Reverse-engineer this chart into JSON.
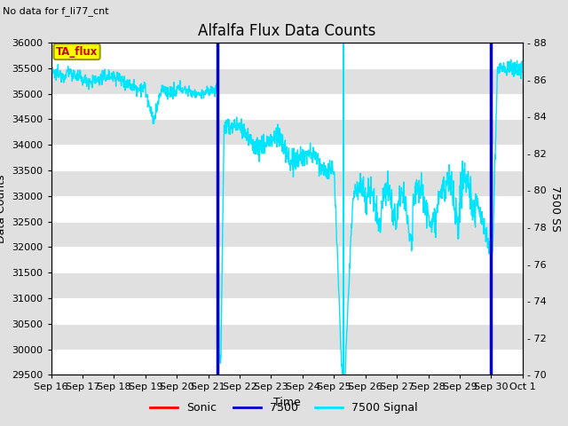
{
  "title": "Alfalfa Flux Data Counts",
  "top_left_note": "No data for f_li77_cnt",
  "ylabel_left": "Data Counts",
  "ylabel_right": "7500 SS",
  "xlabel": "Time",
  "ylim_left": [
    29500,
    36000
  ],
  "ylim_right": [
    70,
    88
  ],
  "bg_color": "#e0e0e0",
  "grid_color": "#ffffff",
  "cyan_line_color": "#00e5ff",
  "blue_vline_color": "#0000cd",
  "cyan_vline_color": "#00e5ff",
  "red_line_color": "#ff0000",
  "tag_label": "TA_flux",
  "tag_bg": "#ffff00",
  "tag_border": "#999900",
  "tag_text_color": "#cc0000",
  "xtick_labels": [
    "Sep 16",
    "Sep 17",
    "Sep 18",
    "Sep 19",
    "Sep 20",
    "Sep 21",
    "Sep 22",
    "Sep 23",
    "Sep 24",
    "Sep 25",
    "Sep 26",
    "Sep 27",
    "Sep 28",
    "Sep 29",
    "Sep 30",
    "Oct 1"
  ],
  "yticks_left": [
    29500,
    30000,
    30500,
    31000,
    31500,
    32000,
    32500,
    33000,
    33500,
    34000,
    34500,
    35000,
    35500,
    36000
  ],
  "yticks_right": [
    70,
    72,
    74,
    76,
    78,
    80,
    82,
    84,
    86,
    88
  ],
  "total_days": 15,
  "vline_blue1": 5.3,
  "vline_cyan": 9.3,
  "vline_blue2": 14.0
}
